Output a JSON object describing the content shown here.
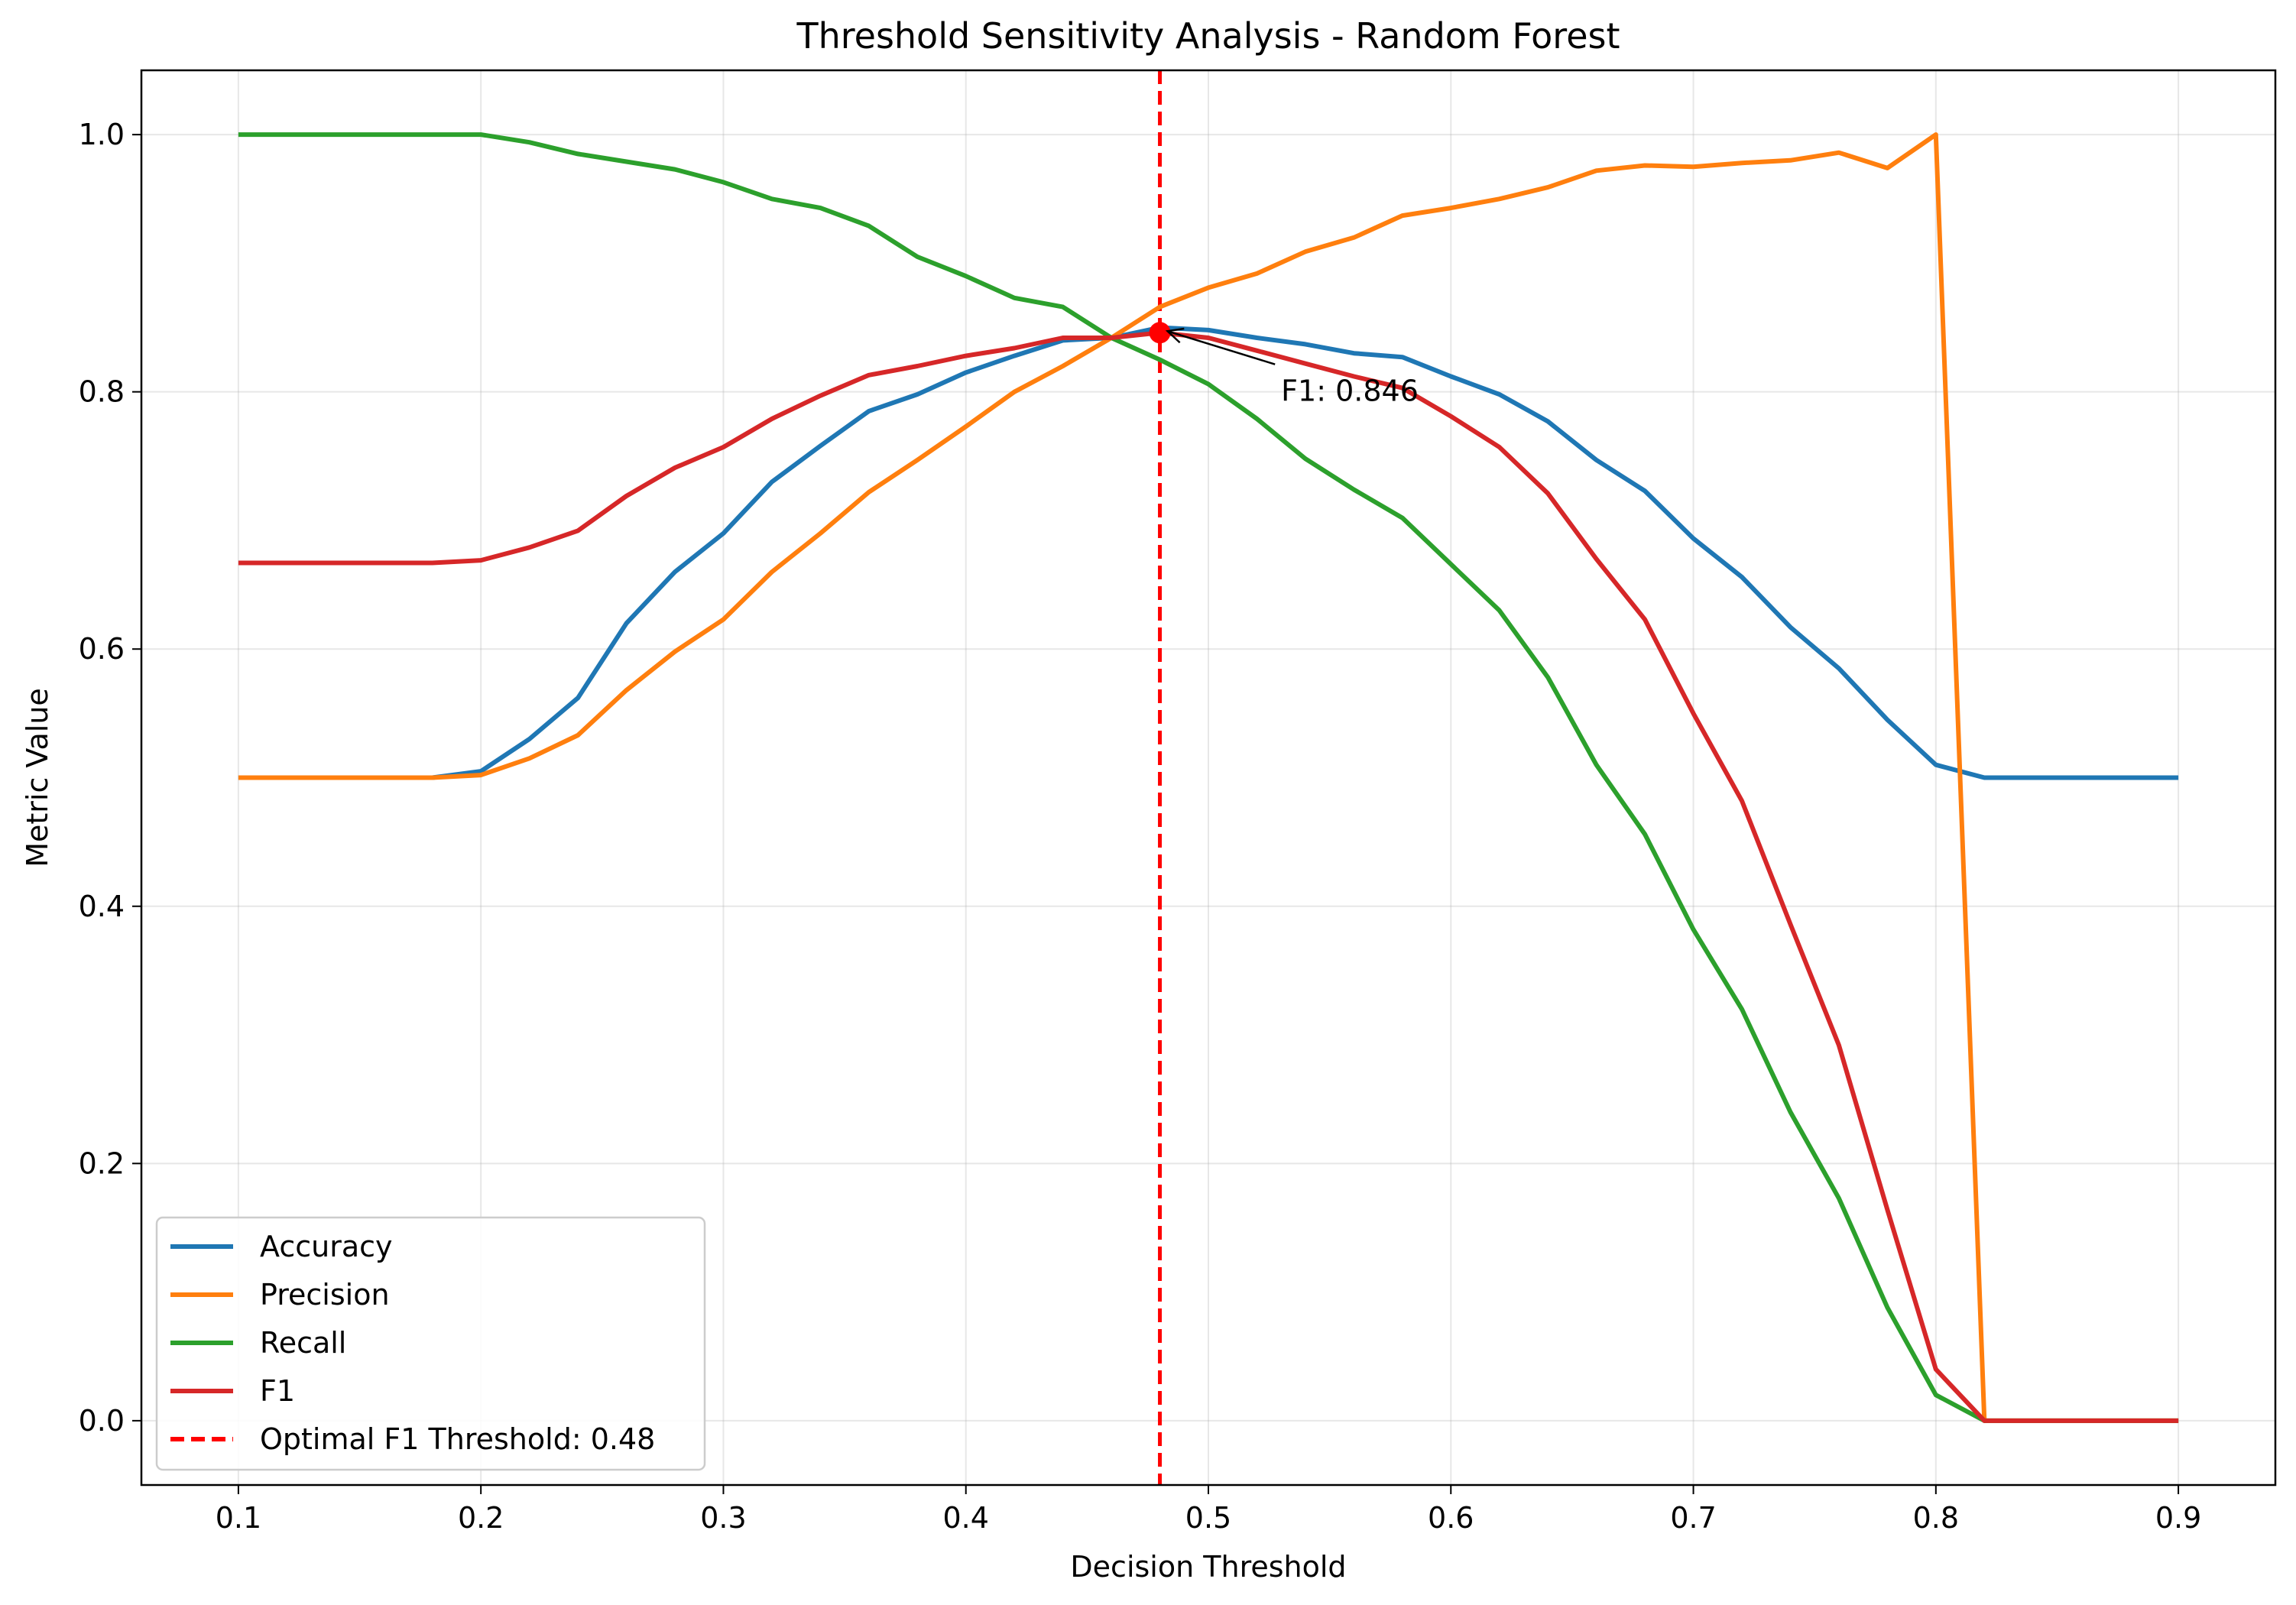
{
  "chart_data": {
    "type": "line",
    "title": "Threshold Sensitivity Analysis - Random Forest",
    "xlabel": "Decision Threshold",
    "ylabel": "Metric Value",
    "xlim": [
      0.06,
      0.94
    ],
    "ylim": [
      -0.05,
      1.05
    ],
    "xticks": [
      0.1,
      0.2,
      0.3,
      0.4,
      0.5,
      0.6,
      0.7,
      0.8,
      0.9
    ],
    "xtick_labels": [
      "0.1",
      "0.2",
      "0.3",
      "0.4",
      "0.5",
      "0.6",
      "0.7",
      "0.8",
      "0.9"
    ],
    "yticks": [
      0.0,
      0.2,
      0.4,
      0.6,
      0.8,
      1.0
    ],
    "ytick_labels": [
      "0.0",
      "0.2",
      "0.4",
      "0.6",
      "0.8",
      "1.0"
    ],
    "grid": true,
    "legend_position": "lower-left",
    "x": [
      0.1,
      0.12,
      0.14,
      0.16,
      0.18,
      0.2,
      0.22,
      0.24,
      0.26,
      0.28,
      0.3,
      0.32,
      0.34,
      0.36,
      0.38,
      0.4,
      0.42,
      0.44,
      0.46,
      0.48,
      0.5,
      0.52,
      0.54,
      0.56,
      0.58,
      0.6,
      0.62,
      0.64,
      0.66,
      0.68,
      0.7,
      0.72,
      0.74,
      0.76,
      0.78,
      0.8,
      0.82,
      0.84,
      0.86,
      0.88,
      0.9
    ],
    "series": [
      {
        "name": "Accuracy",
        "color": "#1f77b4",
        "values": [
          0.5,
          0.5,
          0.5,
          0.5,
          0.5,
          0.505,
          0.53,
          0.562,
          0.62,
          0.66,
          0.69,
          0.73,
          0.758,
          0.785,
          0.798,
          0.815,
          0.828,
          0.84,
          0.842,
          0.85,
          0.848,
          0.842,
          0.837,
          0.83,
          0.827,
          0.812,
          0.798,
          0.777,
          0.747,
          0.723,
          0.686,
          0.656,
          0.617,
          0.585,
          0.545,
          0.51,
          0.5,
          0.5,
          0.5,
          0.5,
          0.5
        ]
      },
      {
        "name": "Precision",
        "color": "#ff7f0e",
        "values": [
          0.5,
          0.5,
          0.5,
          0.5,
          0.5,
          0.502,
          0.515,
          0.533,
          0.568,
          0.598,
          0.623,
          0.66,
          0.69,
          0.722,
          0.747,
          0.773,
          0.8,
          0.82,
          0.842,
          0.866,
          0.881,
          0.892,
          0.909,
          0.92,
          0.937,
          0.943,
          0.95,
          0.959,
          0.972,
          0.976,
          0.975,
          0.978,
          0.98,
          0.986,
          0.974,
          1.0,
          0.0,
          0.0,
          0.0,
          0.0,
          0.0
        ]
      },
      {
        "name": "Recall",
        "color": "#2ca02c",
        "values": [
          1.0,
          1.0,
          1.0,
          1.0,
          1.0,
          1.0,
          0.994,
          0.985,
          0.979,
          0.973,
          0.963,
          0.95,
          0.943,
          0.929,
          0.905,
          0.89,
          0.873,
          0.866,
          0.842,
          0.825,
          0.806,
          0.779,
          0.748,
          0.724,
          0.702,
          0.666,
          0.63,
          0.578,
          0.51,
          0.456,
          0.382,
          0.32,
          0.24,
          0.173,
          0.088,
          0.02,
          0.0,
          0.0,
          0.0,
          0.0,
          0.0
        ]
      },
      {
        "name": "F1",
        "color": "#d62728",
        "values": [
          0.667,
          0.667,
          0.667,
          0.667,
          0.667,
          0.669,
          0.679,
          0.692,
          0.719,
          0.741,
          0.757,
          0.779,
          0.797,
          0.813,
          0.82,
          0.828,
          0.834,
          0.842,
          0.842,
          0.846,
          0.842,
          0.832,
          0.822,
          0.812,
          0.803,
          0.781,
          0.757,
          0.721,
          0.67,
          0.623,
          0.55,
          0.482,
          0.386,
          0.292,
          0.164,
          0.04,
          0.0,
          0.0,
          0.0,
          0.0,
          0.0
        ]
      }
    ],
    "reference_line": {
      "x": 0.48,
      "label": "Optimal F1 Threshold: 0.48",
      "color": "#ff0000",
      "style": "dashed"
    },
    "optimal_point": {
      "x": 0.48,
      "y": 0.846,
      "color": "#ff0000"
    },
    "annotation": {
      "text": "F1: 0.846",
      "text_x": 0.53,
      "text_y": 0.8,
      "arrow_to_x": 0.48,
      "arrow_to_y": 0.846
    }
  }
}
